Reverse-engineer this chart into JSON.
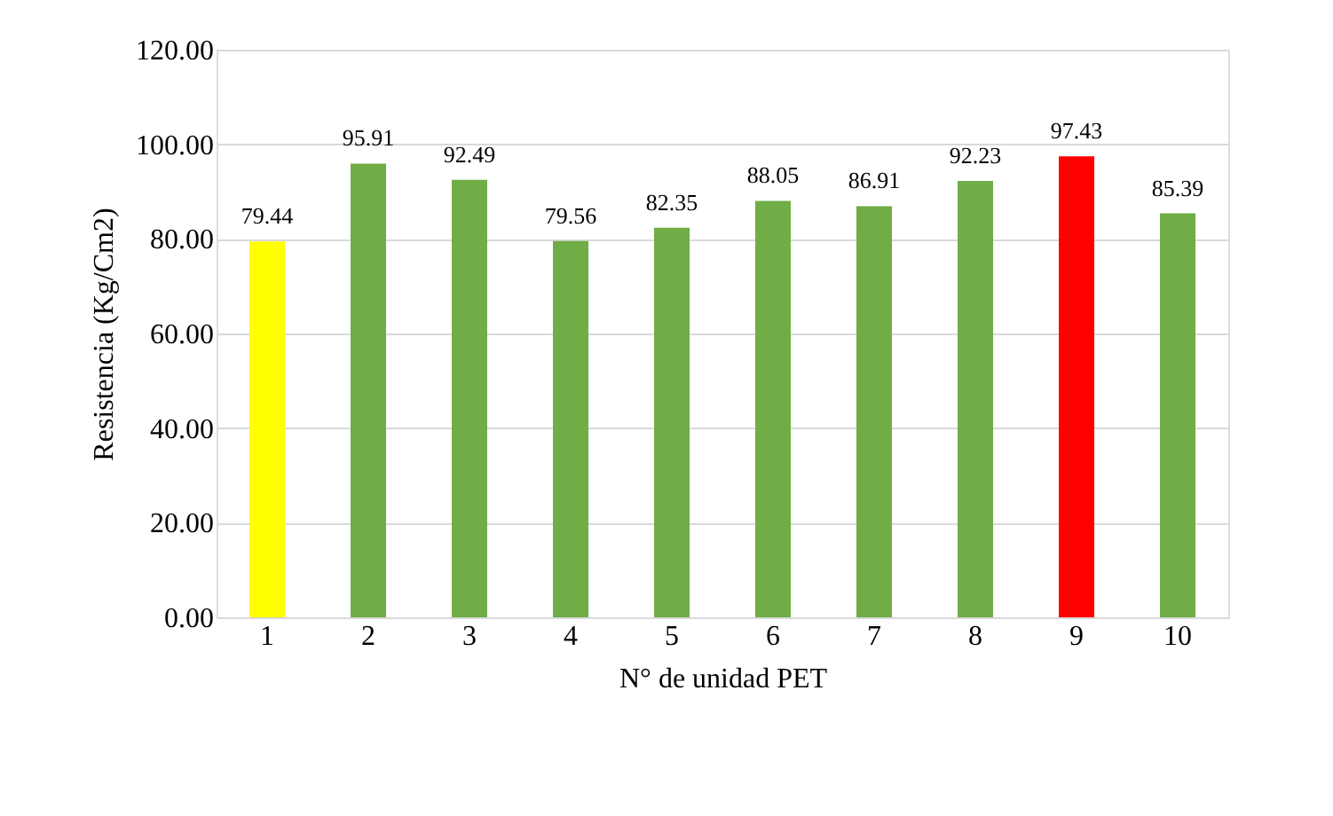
{
  "chart_data": {
    "type": "bar",
    "xlabel": "N° de unidad PET",
    "ylabel": "Resistencia (Kg/Cm2)",
    "categories": [
      "1",
      "2",
      "3",
      "4",
      "5",
      "6",
      "7",
      "8",
      "9",
      "10"
    ],
    "values": [
      79.44,
      95.91,
      92.49,
      79.56,
      82.35,
      88.05,
      86.91,
      92.23,
      97.43,
      85.39
    ],
    "colors": [
      "#ffff00",
      "#70ad47",
      "#70ad47",
      "#70ad47",
      "#70ad47",
      "#70ad47",
      "#70ad47",
      "#70ad47",
      "#ff0000",
      "#70ad47"
    ],
    "ylim": [
      0,
      120
    ],
    "yticks": [
      {
        "value": 0,
        "label": "0.00"
      },
      {
        "value": 20,
        "label": "20.00"
      },
      {
        "value": 40,
        "label": "40.00"
      },
      {
        "value": 60,
        "label": "60.00"
      },
      {
        "value": 80,
        "label": "80.00"
      },
      {
        "value": 100,
        "label": "100.00"
      },
      {
        "value": 120,
        "label": "120.00"
      }
    ],
    "grid": "y",
    "data_labels": true
  }
}
